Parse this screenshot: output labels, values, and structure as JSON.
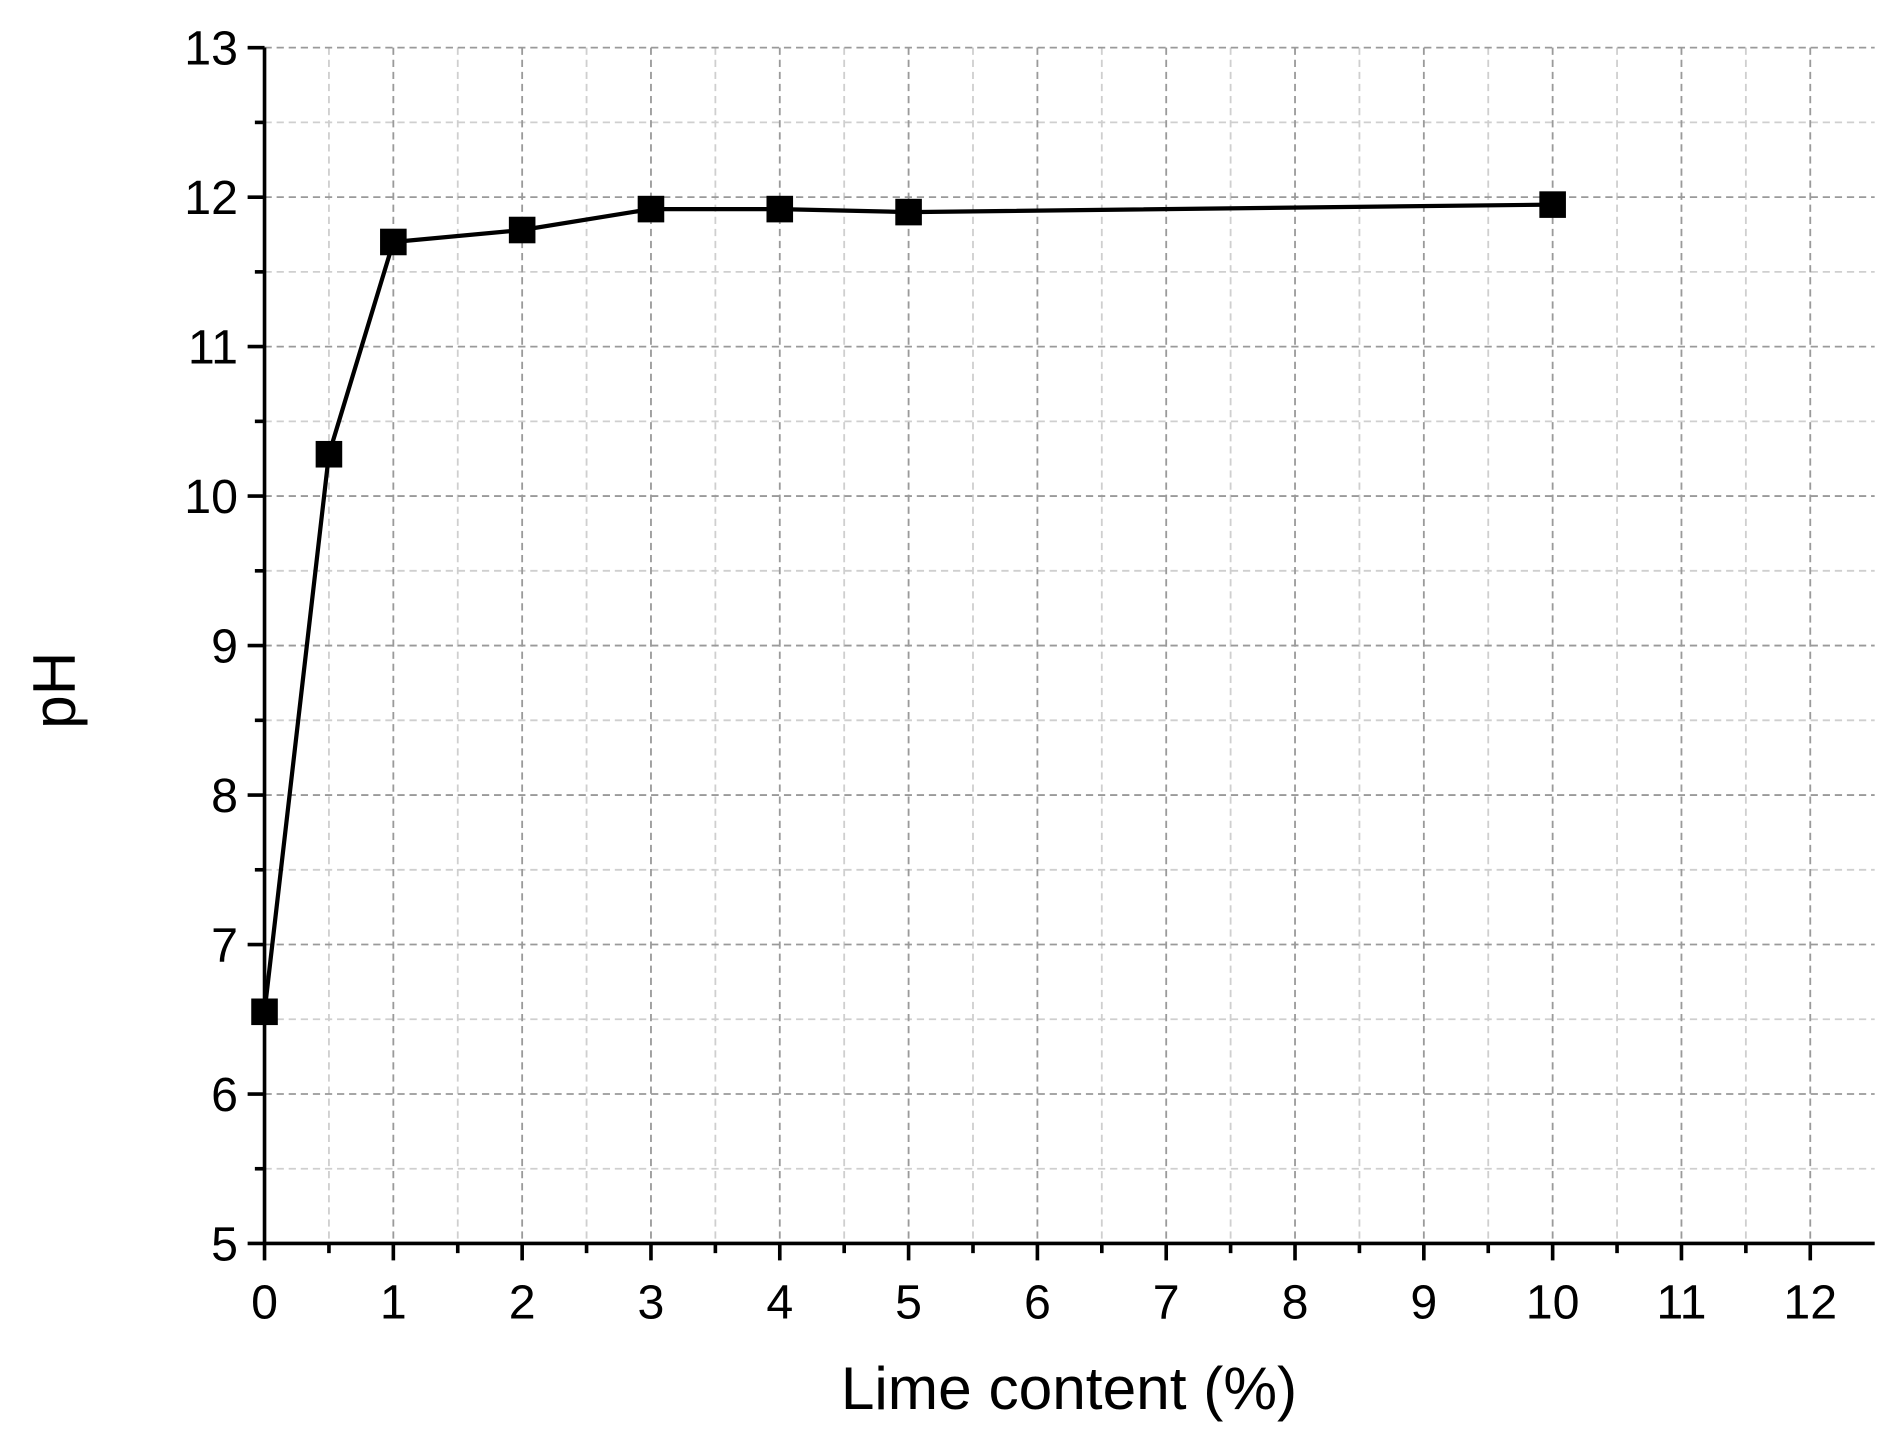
{
  "chart_data": {
    "type": "line",
    "x_label": "Lime content (%)",
    "y_label": "pH",
    "series": [
      {
        "name": "pH",
        "color": "#000000",
        "x": [
          0,
          0.5,
          1,
          2,
          3,
          4,
          5,
          10
        ],
        "values": [
          6.55,
          10.28,
          11.7,
          11.78,
          11.92,
          11.92,
          11.9,
          11.95
        ]
      }
    ],
    "xlim": [
      0,
      12.5
    ],
    "ylim": [
      5,
      13
    ],
    "xticks": [
      0,
      1,
      2,
      3,
      4,
      5,
      6,
      7,
      8,
      9,
      10,
      11,
      12
    ],
    "yticks": [
      5,
      6,
      7,
      8,
      9,
      10,
      11,
      12,
      13
    ],
    "xminorticks": [
      0.5,
      1.5,
      2.5,
      3.5,
      4.5,
      5.5,
      6.5,
      7.5,
      8.5,
      9.5,
      10.5,
      11.5
    ],
    "yminorticks": [
      5.5,
      6.5,
      7.5,
      8.5,
      9.5,
      10.5,
      11.5,
      12.5
    ],
    "grid": true,
    "marker": "square"
  }
}
